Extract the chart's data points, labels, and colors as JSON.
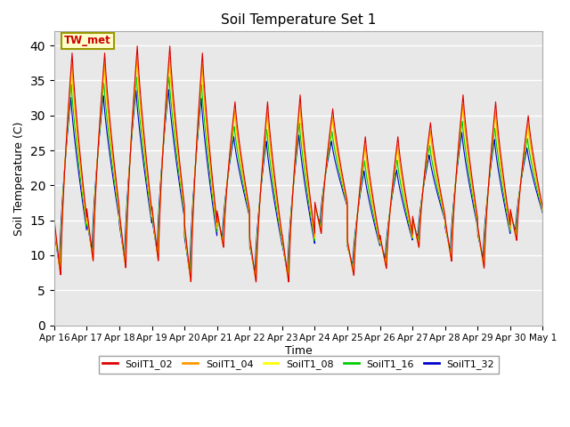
{
  "title": "Soil Temperature Set 1",
  "ylabel": "Soil Temperature (C)",
  "xlabel": "Time",
  "ylim": [
    0,
    42
  ],
  "yticks": [
    0,
    5,
    10,
    15,
    20,
    25,
    30,
    35,
    40
  ],
  "background_color": "#e8e8e8",
  "series_colors": {
    "SoilT1_02": "#dd0000",
    "SoilT1_04": "#ff9900",
    "SoilT1_08": "#ffff00",
    "SoilT1_16": "#00cc00",
    "SoilT1_32": "#0000cc"
  },
  "series_order": [
    "SoilT1_32",
    "SoilT1_16",
    "SoilT1_08",
    "SoilT1_04",
    "SoilT1_02"
  ],
  "annotation_text": "TW_met",
  "xtick_labels": [
    "Apr 16",
    "Apr 17",
    "Apr 18",
    "Apr 19",
    "Apr 20",
    "Apr 21",
    "Apr 22",
    "Apr 23",
    "Apr 24",
    "Apr 25",
    "Apr 26",
    "Apr 27",
    "Apr 28",
    "Apr 29",
    "Apr 30",
    "May 1"
  ],
  "num_days": 15,
  "points_per_day": 144,
  "day_peaks_02": [
    39,
    39,
    40,
    40,
    39,
    32,
    32,
    33,
    31,
    27,
    27,
    29,
    33,
    32,
    30
  ],
  "day_mins_02": [
    7,
    9,
    8,
    9,
    6,
    11,
    6,
    6,
    13,
    7,
    8,
    11,
    9,
    8,
    12
  ],
  "legend_labels": [
    "SoilT1_02",
    "SoilT1_04",
    "SoilT1_08",
    "SoilT1_16",
    "SoilT1_32"
  ],
  "legend_colors": [
    "#dd0000",
    "#ff9900",
    "#ffff00",
    "#00cc00",
    "#0000cc"
  ]
}
